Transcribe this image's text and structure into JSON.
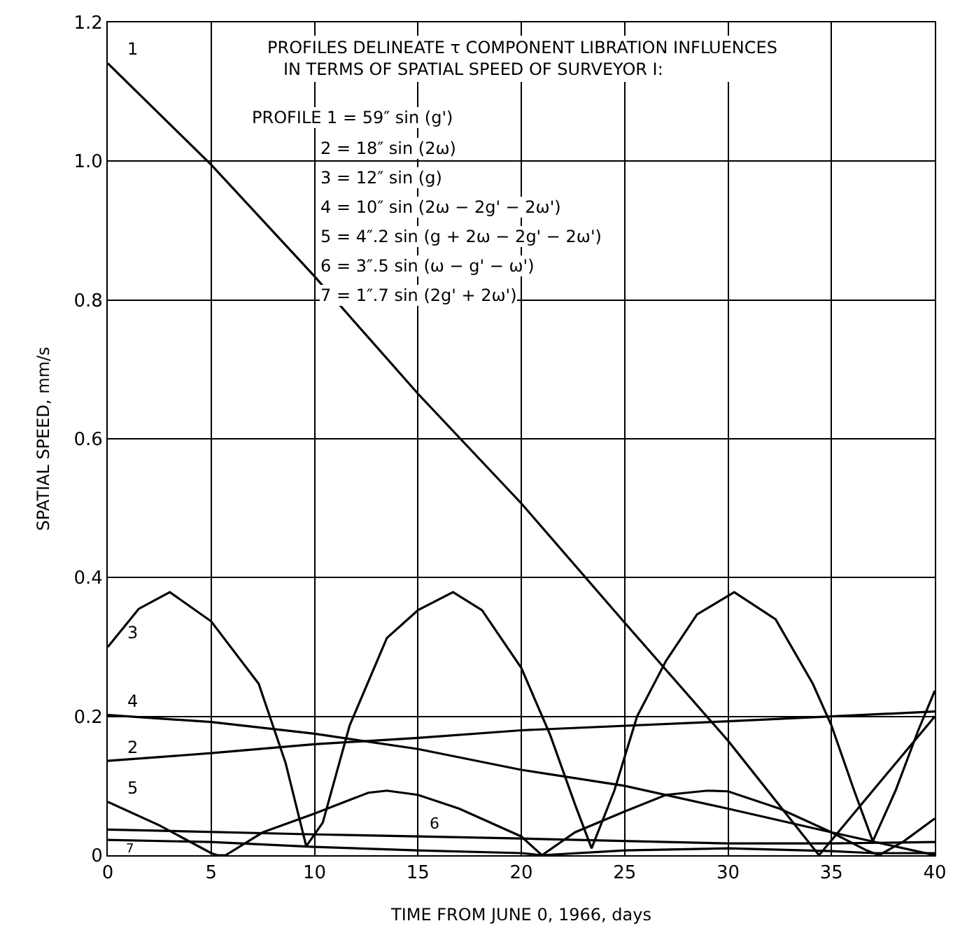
{
  "chart_data": {
    "type": "line",
    "xlabel": "TIME FROM JUNE 0, 1966, days",
    "ylabel": "SPATIAL SPEED, mm/s",
    "xlim": [
      0,
      40
    ],
    "xticks": [
      0,
      5,
      10,
      15,
      20,
      25,
      30,
      35,
      40
    ],
    "ylim": [
      0,
      1.2
    ],
    "yticks": [
      0,
      0.2,
      0.4,
      0.6,
      0.8,
      {
        "value": 1.0,
        "label": "1.0"
      },
      1.2
    ],
    "grid": true,
    "legend": false,
    "marker": "none",
    "line_style": "solid",
    "annotations": [
      "PROFILES DELINEATE τ COMPONENT LIBRATION INFLUENCES\n   IN TERMS OF SPATIAL SPEED OF SURVEYOR I:",
      "PROFILE 1 = 59″ sin (g')",
      "2 = 18″ sin (2ω)",
      "3 = 12″ sin (g)",
      "4 = 10″ sin (2ω − 2g' − 2ω')",
      "5 = 4″.2 sin (g + 2ω − 2g' − 2ω')",
      "6 = 3″.5 sin (ω − g' − ω')",
      "7 = 1″.7 sin (2g' + 2ω')"
    ],
    "series": [
      {
        "name": "1",
        "color": "#000000",
        "x": [
          0,
          5,
          10,
          15,
          20,
          25,
          30,
          34.4,
          40
        ],
        "values": [
          1.141,
          0.995,
          0.834,
          0.665,
          0.507,
          0.335,
          0.165,
          0.0,
          0.2
        ]
      },
      {
        "name": "2",
        "color": "#000000",
        "x": [
          0,
          5,
          10,
          15,
          20,
          30,
          35,
          40
        ],
        "values": [
          0.136,
          0.147,
          0.16,
          0.169,
          0.18,
          0.193,
          0.2,
          0.207
        ]
      },
      {
        "name": "3",
        "color": "#000000",
        "x": [
          0,
          1.5,
          3,
          5,
          7.3,
          8.6,
          9.6,
          10.4,
          11.7,
          13.5,
          15,
          16.7,
          18.1,
          20,
          21.4,
          22.6,
          23.4,
          24.5,
          25.6,
          27,
          28.5,
          30.3,
          32.3,
          34.1,
          35,
          36.1,
          37,
          38.1,
          39.2,
          40
        ],
        "values": [
          0.3,
          0.355,
          0.379,
          0.337,
          0.247,
          0.133,
          0.013,
          0.047,
          0.187,
          0.313,
          0.353,
          0.379,
          0.353,
          0.27,
          0.173,
          0.073,
          0.01,
          0.093,
          0.2,
          0.28,
          0.347,
          0.379,
          0.34,
          0.247,
          0.187,
          0.093,
          0.02,
          0.093,
          0.18,
          0.237
        ]
      },
      {
        "name": "4",
        "color": "#000000",
        "x": [
          0,
          5,
          10,
          15,
          20,
          25,
          30,
          35,
          40
        ],
        "values": [
          0.202,
          0.192,
          0.175,
          0.153,
          0.123,
          0.1,
          0.067,
          0.033,
          0.0
        ]
      },
      {
        "name": "5",
        "color": "#000000",
        "x": [
          0,
          2.5,
          5,
          5.3,
          5.7,
          7.5,
          10,
          12.6,
          13.5,
          15,
          17,
          20,
          21,
          22.6,
          25,
          27,
          29,
          30,
          32.5,
          35,
          36.7,
          37.3,
          38.5,
          40
        ],
        "values": [
          0.077,
          0.043,
          0.003,
          0.0,
          0.0,
          0.033,
          0.06,
          0.09,
          0.093,
          0.087,
          0.067,
          0.027,
          0.0,
          0.033,
          0.063,
          0.087,
          0.093,
          0.092,
          0.067,
          0.033,
          0.007,
          0.0,
          0.02,
          0.053
        ]
      },
      {
        "name": "6",
        "color": "#000000",
        "x": [
          0,
          10,
          15,
          20,
          30,
          35,
          40
        ],
        "values": [
          0.037,
          0.03,
          0.027,
          0.024,
          0.017,
          0.017,
          0.019
        ]
      },
      {
        "name": "7",
        "color": "#000000",
        "x": [
          0,
          5,
          10,
          15,
          20,
          21,
          25,
          30,
          35,
          37,
          40
        ],
        "values": [
          0.022,
          0.019,
          0.012,
          0.007,
          0.003,
          0.0,
          0.007,
          0.01,
          0.006,
          0.003,
          0.003
        ]
      }
    ]
  }
}
